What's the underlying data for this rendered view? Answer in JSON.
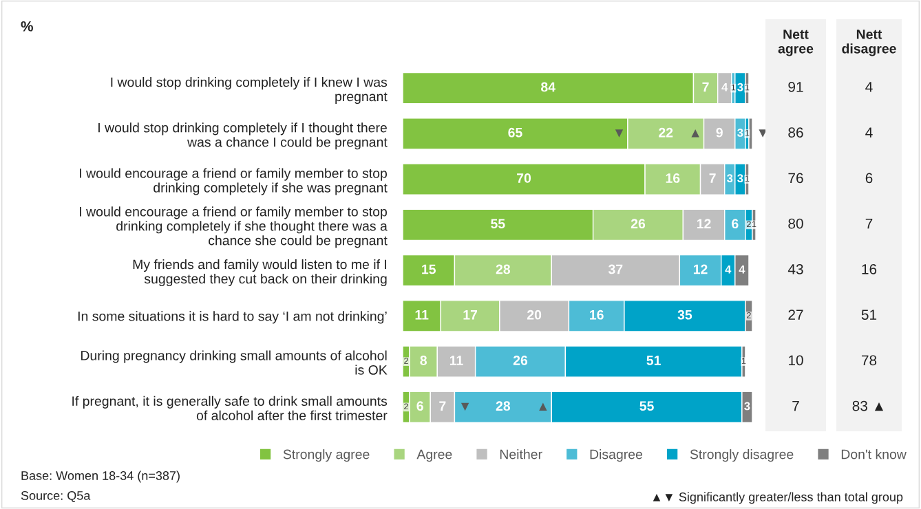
{
  "chart_data": [
    {
      "type": "bar",
      "orientation": "horizontal",
      "stacked": true,
      "categories": [
        "I would stop drinking completely if I knew I was\npregnant",
        "I would stop drinking completely if I thought there\nwas a chance I could be pregnant",
        "I would encourage a friend or family member to stop\ndrinking completely if she was pregnant",
        "I would encourage a friend or family member to stop\ndrinking completely if she thought there was a\nchance she could be pregnant",
        "My friends and family would listen to me if I\nsuggested they cut back on their drinking",
        "In some situations it is hard to say ‘I am not drinking’",
        "During pregnancy drinking small amounts of alcohol\nis OK",
        "If pregnant, it is generally safe to drink small amounts\nof alcohol after the first trimester"
      ],
      "xlim": [
        0,
        102
      ],
      "grid": false,
      "legend": "bottom",
      "series": [
        {
          "name": "Strongly agree",
          "color": "#82c341",
          "values": [
            84,
            65,
            70,
            55,
            15,
            11,
            2,
            2
          ],
          "value_labels": [
            "84",
            "65",
            "70",
            "55",
            "15",
            "11",
            "2",
            "2"
          ]
        },
        {
          "name": "Agree",
          "color": "#a9d57f",
          "values": [
            7,
            22,
            16,
            26,
            28,
            17,
            8,
            6
          ],
          "value_labels": [
            "7",
            "22",
            "16",
            "26",
            "28",
            "17",
            "8",
            "6"
          ]
        },
        {
          "name": "Neither",
          "color": "#bfbfbf",
          "values": [
            4,
            9,
            7,
            12,
            37,
            20,
            11,
            7
          ],
          "value_labels": [
            "4",
            "9",
            "7",
            "12",
            "37",
            "20",
            "11",
            "7"
          ]
        },
        {
          "name": "Disagree",
          "color": "#4dbcd6",
          "values": [
            1,
            3,
            3,
            6,
            12,
            16,
            26,
            28
          ],
          "value_labels": [
            "1",
            "3",
            "3",
            "6",
            "12",
            "16",
            "26",
            "28"
          ]
        },
        {
          "name": "Strongly disagree",
          "color": "#00a3c8",
          "values": [
            3,
            1,
            3,
            2,
            4,
            35,
            51,
            55
          ],
          "value_labels": [
            "3",
            "1",
            "3",
            "2",
            "4",
            "35",
            "51",
            "55"
          ]
        },
        {
          "name": "Don't know",
          "color": "#7f7f7f",
          "values": [
            1,
            1,
            1,
            1,
            4,
            2,
            1,
            3
          ],
          "value_labels": [
            "1",
            null,
            "1",
            "1",
            "4",
            "2",
            "1",
            "3"
          ]
        }
      ],
      "annotations": [
        "%",
        {
          "text": "▼",
          "x": 65,
          "y": "I would stop drinking completely if I thought there\nwas a chance I could be pregnant"
        },
        {
          "text": "▲",
          "x": 87,
          "y": "I would stop drinking completely if I thought there\nwas a chance I could be pregnant"
        },
        {
          "text": "▼",
          "x": 101,
          "y": "I would stop drinking completely if I thought there\nwas a chance I could be pregnant"
        },
        {
          "text": "▼",
          "x": 15,
          "y": "If pregnant, it is generally safe to drink small amounts\nof alcohol after the first trimester"
        },
        {
          "text": "▲",
          "x": 43,
          "y": "If pregnant, it is generally safe to drink small amounts\nof alcohol after the first trimester"
        },
        "Base: Women 18-34 (n=387)",
        "Source: Q5a",
        "▲▼ Significantly greater/less than total group"
      ]
    },
    {
      "type": "other",
      "annotations": [
        "Nett\nagree",
        "91",
        "86",
        "76",
        "80",
        "43",
        "27",
        "10",
        "7",
        "Nett\ndisagree",
        "4",
        "4",
        "6",
        "7",
        "16",
        "51",
        "78",
        "83 ▲"
      ]
    }
  ]
}
